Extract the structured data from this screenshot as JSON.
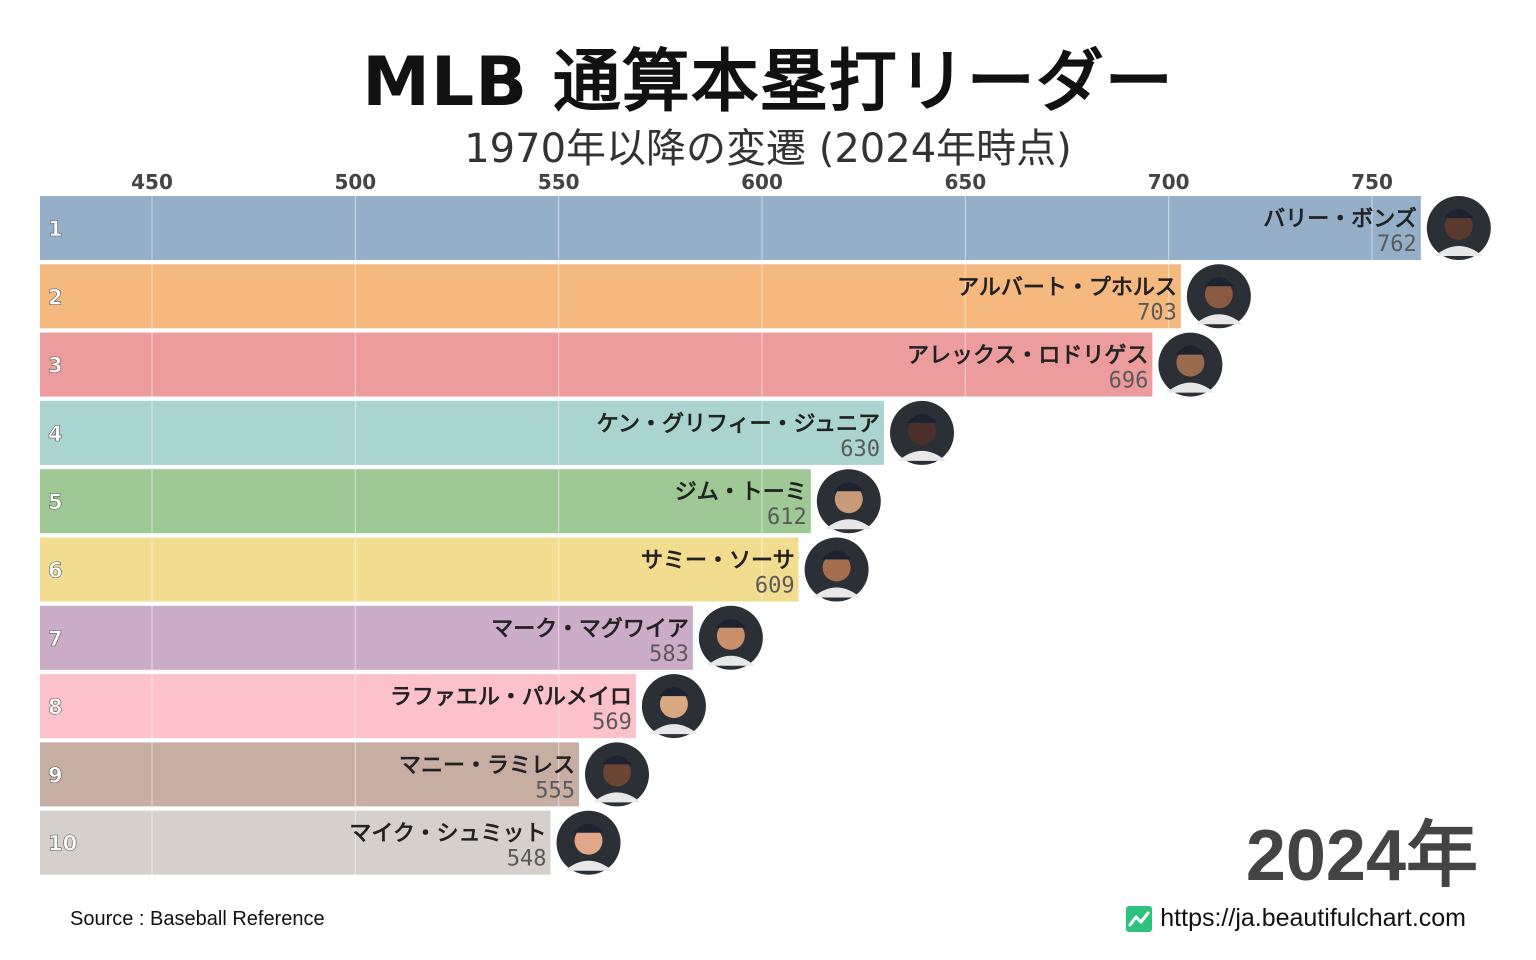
{
  "header": {
    "title": "MLB 通算本塁打リーダー",
    "subtitle": "1970年以降の変遷 (2024年時点)"
  },
  "footer": {
    "source": "Source : Baseball Reference",
    "url": "https://ja.beautifulchart.com"
  },
  "year_label": "2024年",
  "chart_data": {
    "type": "bar",
    "orientation": "horizontal",
    "title": "MLB 通算本塁打リーダー",
    "subtitle": "1970年以降の変遷 (2024年時点)",
    "xlim": [
      423,
      762
    ],
    "x_ticks": [
      450,
      500,
      550,
      600,
      650,
      700,
      750
    ],
    "grid": true,
    "ranks": [
      "1",
      "2",
      "3",
      "4",
      "5",
      "6",
      "7",
      "8",
      "9",
      "10"
    ],
    "categories": [
      "バリー・ボンズ",
      "アルバート・プホルス",
      "アレックス・ロドリゲス",
      "ケン・グリフィー・ジュニア",
      "ジム・トーミ",
      "サミー・ソーサ",
      "マーク・マグワイア",
      "ラファエル・パルメイロ",
      "マニー・ラミレス",
      "マイク・シュミット"
    ],
    "values": [
      762,
      703,
      696,
      630,
      612,
      609,
      583,
      569,
      555,
      548
    ],
    "colors": [
      "#95afc9",
      "#f5b97f",
      "#ec9c9d",
      "#a9d4d0",
      "#9ec894",
      "#f2dc8f",
      "#cbadc7",
      "#fdc1c9",
      "#c7aea3",
      "#d6d0cc"
    ],
    "avatar_colors": [
      "#5a3a2e",
      "#8a5a40",
      "#9a6a4e",
      "#4a3028",
      "#c99a7a",
      "#a66e4e",
      "#c98e6a",
      "#d8a882",
      "#6a4534",
      "#e0a888"
    ]
  }
}
